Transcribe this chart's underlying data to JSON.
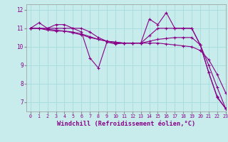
{
  "background_color": "#c8ebeb",
  "grid_color": "#aadddd",
  "line_color": "#880088",
  "xlabel": "Windchill (Refroidissement éolien,°C)",
  "xlim": [
    -0.5,
    23
  ],
  "ylim": [
    6.5,
    12.3
  ],
  "yticks": [
    7,
    8,
    9,
    10,
    11,
    12
  ],
  "xticks": [
    0,
    1,
    2,
    3,
    4,
    5,
    6,
    7,
    8,
    9,
    10,
    11,
    12,
    13,
    14,
    15,
    16,
    17,
    18,
    19,
    20,
    21,
    22,
    23
  ],
  "series": [
    [
      11.0,
      11.3,
      11.0,
      11.2,
      11.2,
      11.0,
      10.8,
      9.4,
      8.85,
      10.25,
      10.15,
      10.2,
      10.2,
      10.2,
      11.5,
      11.2,
      11.85,
      11.0,
      11.0,
      11.0,
      10.1,
      8.6,
      7.3,
      6.65
    ],
    [
      11.0,
      11.0,
      10.9,
      10.85,
      10.85,
      10.75,
      10.65,
      10.5,
      10.4,
      10.3,
      10.25,
      10.2,
      10.2,
      10.2,
      10.2,
      10.2,
      10.15,
      10.1,
      10.05,
      10.0,
      9.8,
      9.3,
      8.5,
      7.5
    ],
    [
      11.0,
      11.0,
      11.0,
      11.0,
      11.0,
      11.0,
      11.0,
      10.8,
      10.5,
      10.3,
      10.2,
      10.2,
      10.2,
      10.2,
      10.6,
      11.0,
      11.0,
      11.0,
      11.0,
      11.0,
      10.1,
      8.6,
      7.25,
      6.65
    ],
    [
      11.0,
      11.0,
      10.95,
      10.9,
      10.85,
      10.8,
      10.7,
      10.55,
      10.4,
      10.3,
      10.25,
      10.2,
      10.2,
      10.2,
      10.3,
      10.4,
      10.45,
      10.5,
      10.5,
      10.5,
      10.1,
      9.0,
      7.8,
      6.65
    ]
  ]
}
